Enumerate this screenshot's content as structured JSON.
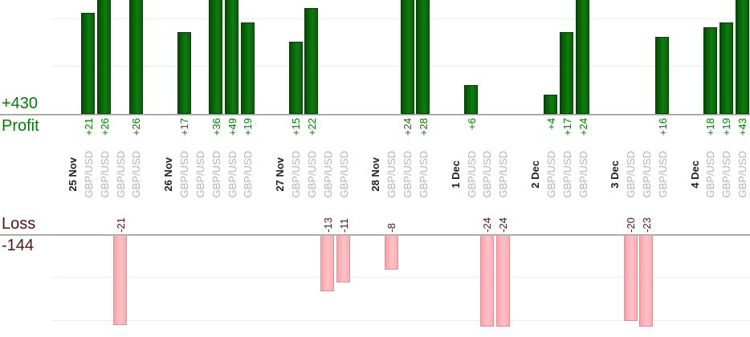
{
  "chart_data": {
    "type": "bar",
    "title": "",
    "profit": {
      "total_label": "+430",
      "axis_label": "Profit"
    },
    "loss": {
      "axis_label": "Loss",
      "total_label": "-144"
    },
    "groups": [
      {
        "date": "25 Nov",
        "trades": [
          {
            "symbol": "GBP/USD",
            "value": 21
          },
          {
            "symbol": "GBP/USD",
            "value": 26
          },
          {
            "symbol": "GBP/USD",
            "value": -21
          },
          {
            "symbol": "GBP/USD",
            "value": 26
          }
        ]
      },
      {
        "date": "26 Nov",
        "trades": [
          {
            "symbol": "GBP/USD",
            "value": 17
          },
          {
            "symbol": "GBP/USD",
            "value": 0
          },
          {
            "symbol": "GBP/USD",
            "value": 36
          },
          {
            "symbol": "GBP/USD",
            "value": 49
          },
          {
            "symbol": "GBP/USD",
            "value": 19
          }
        ]
      },
      {
        "date": "27 Nov",
        "trades": [
          {
            "symbol": "GBP/USD",
            "value": 15
          },
          {
            "symbol": "GBP/USD",
            "value": 22
          },
          {
            "symbol": "GBP/USD",
            "value": -13
          },
          {
            "symbol": "GBP/USD",
            "value": -11
          }
        ]
      },
      {
        "date": "28 Nov",
        "trades": [
          {
            "symbol": "GBP/USD",
            "value": -8
          },
          {
            "symbol": "GBP/USD",
            "value": 24
          },
          {
            "symbol": "GBP/USD",
            "value": 28
          }
        ]
      },
      {
        "date": "1 Dec",
        "trades": [
          {
            "symbol": "GBP/USD",
            "value": 6
          },
          {
            "symbol": "GBP/USD",
            "value": -24
          },
          {
            "symbol": "GBP/USD",
            "value": -24
          }
        ]
      },
      {
        "date": "2 Dec",
        "trades": [
          {
            "symbol": "GBP/USD",
            "value": 4
          },
          {
            "symbol": "GBP/USD",
            "value": 17
          },
          {
            "symbol": "GBP/USD",
            "value": 24
          }
        ]
      },
      {
        "date": "3 Dec",
        "trades": [
          {
            "symbol": "GBP/USD",
            "value": -20
          },
          {
            "symbol": "GBP/USD",
            "value": -23
          },
          {
            "symbol": "GBP/USD",
            "value": 16
          }
        ]
      },
      {
        "date": "4 Dec",
        "trades": [
          {
            "symbol": "GBP/USD",
            "value": 18
          },
          {
            "symbol": "GBP/USD",
            "value": 19
          },
          {
            "symbol": "GBP/USD",
            "value": 43
          }
        ]
      }
    ],
    "layout": {
      "grid": true,
      "gridline_step": 10,
      "cropped_top": true,
      "profit_visible_range": [
        0,
        24
      ],
      "loss_visible_range": [
        0,
        -21.5
      ]
    }
  },
  "colors": {
    "profit_text": "#008000",
    "loss_text": "#531313",
    "profit_bar": "#0c7d0c",
    "loss_bar": "#ffc2c6",
    "date_label": "#1f1f1f",
    "symbol_label": "#b3b3b3",
    "axis_line": "#868686",
    "gridline": "#ececec"
  }
}
